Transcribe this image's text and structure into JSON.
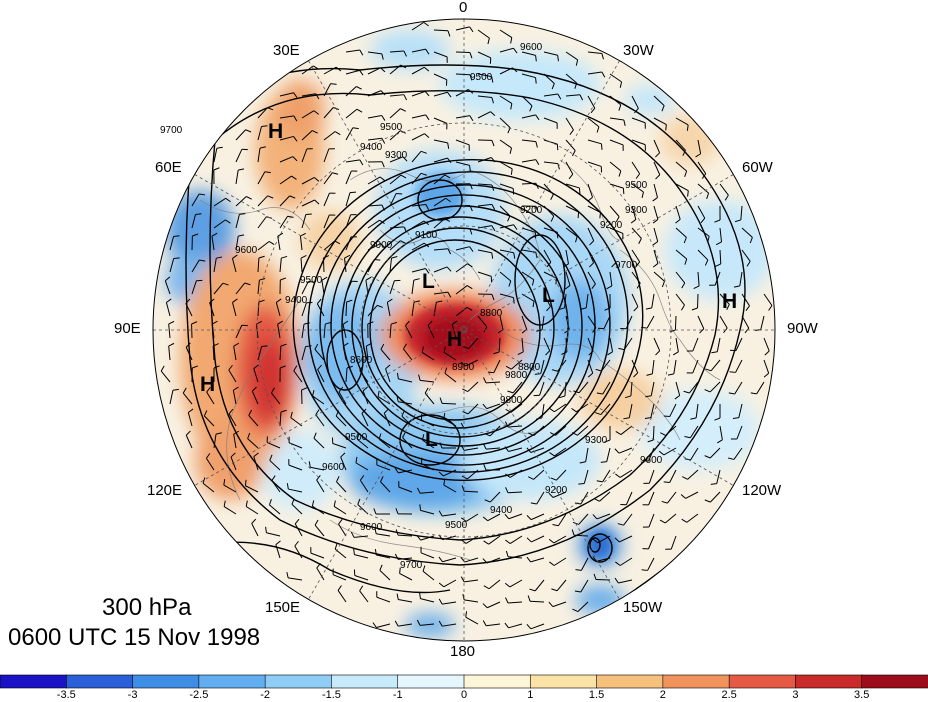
{
  "title": {
    "level": "300 hPa",
    "time": "0600 UTC 15 Nov 1998"
  },
  "longitude_labels": {
    "top": "0",
    "bottom": "180",
    "left": "90E",
    "right": "90W",
    "upper_left_30": "30E",
    "upper_left_60": "60E",
    "upper_right_30": "30W",
    "upper_right_60": "60W",
    "lower_left_120": "120E",
    "lower_left_150": "150E",
    "lower_right_120": "120W",
    "lower_right_150": "150W"
  },
  "pressure_centers": [
    "H",
    "H",
    "H",
    "H",
    "L",
    "L",
    "L"
  ],
  "contour_labels": [
    "9600",
    "9500",
    "9500",
    "9400",
    "9300",
    "9200",
    "9100",
    "9000",
    "8600",
    "8900",
    "8800",
    "9200",
    "9400",
    "9500",
    "9600",
    "9700",
    "9700",
    "9600",
    "9500",
    "9400",
    "9200",
    "9300",
    "9600",
    "9300",
    "9800",
    "9700",
    "9500",
    "9600",
    "8800",
    "9500",
    "9800"
  ],
  "colorbar": {
    "colors": [
      "#1a12c4",
      "#2a5fd8",
      "#3e8ee6",
      "#62aef0",
      "#90cdf6",
      "#c7ebfb",
      "#e6f6fd",
      "#fdf5d8",
      "#fbe3a8",
      "#f6c07d",
      "#f0935c",
      "#e65a45",
      "#c92a2a",
      "#9e0c1c"
    ],
    "ticks": [
      "-3.5",
      "-3",
      "-2.5",
      "-2",
      "-1.5",
      "-1",
      "0",
      "1",
      "1.5",
      "2",
      "2.5",
      "3",
      "3.5"
    ]
  },
  "field_colors": {
    "background": "#f7f0e0",
    "strong_positive": "#b5101d",
    "positive": "#e0583f",
    "weak_positive": "#f1b47e",
    "weak_negative": "#c3e6fa",
    "negative": "#6fb6ee",
    "strong_negative": "#3b86dc"
  }
}
